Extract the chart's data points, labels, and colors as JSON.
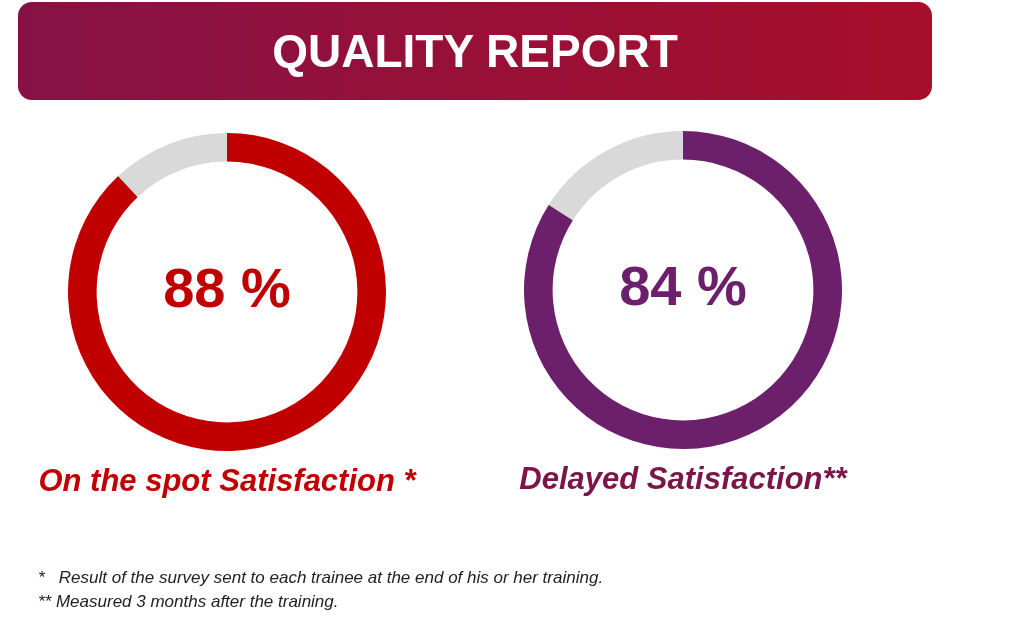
{
  "chart_data": [
    {
      "type": "donut",
      "title": "QUALITY REPORT",
      "categories": [
        null,
        null
      ],
      "values": [
        88,
        12
      ],
      "colors": [
        "#c00000",
        "#d9d9d9"
      ],
      "value_labels": [
        "88 %",
        null
      ],
      "xlabel": "On the spot Satisfaction *",
      "legend": false,
      "annotations": [
        "*   Result of the survey sent to each trainee at the end of his or her training.",
        "** Measured 3 months after the training."
      ]
    },
    {
      "type": "donut",
      "categories": [
        null,
        null
      ],
      "values": [
        84,
        16
      ],
      "colors": [
        "#6c1f6b",
        "#d9d9d9"
      ],
      "value_labels": [
        "84 %",
        null
      ],
      "xlabel": "Delayed Satisfaction**",
      "legend": false
    }
  ]
}
